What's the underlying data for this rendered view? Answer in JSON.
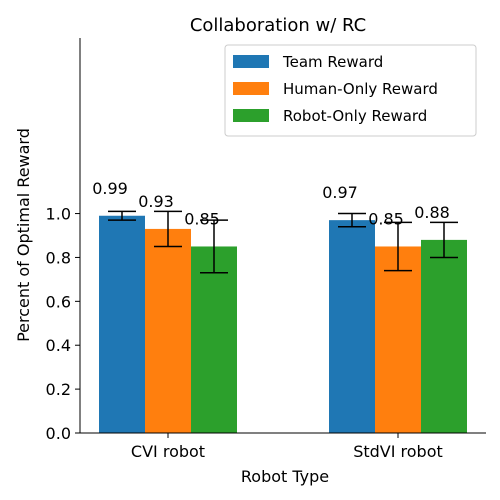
{
  "chart_data": {
    "type": "bar",
    "title": "Collaboration w/ RC",
    "xlabel": "Robot Type",
    "ylabel": "Percent of Optimal Reward",
    "categories": [
      "CVI robot",
      "StdVI robot"
    ],
    "ylim": [
      0,
      1.8
    ],
    "yticks": [
      "0.0",
      "0.2",
      "0.4",
      "0.6",
      "0.8",
      "1.0"
    ],
    "legend_position": "top-right",
    "grid": false,
    "series": [
      {
        "name": "Team Reward",
        "color": "#1f77b4",
        "values": [
          0.99,
          0.97
        ],
        "errors": [
          0.02,
          0.03
        ],
        "labels": [
          "0.99",
          "0.97"
        ]
      },
      {
        "name": "Human-Only Reward",
        "color": "#ff7f0e",
        "values": [
          0.93,
          0.85
        ],
        "errors": [
          0.08,
          0.11
        ],
        "labels": [
          "0.93",
          "0.85"
        ]
      },
      {
        "name": "Robot-Only Reward",
        "color": "#2ca02c",
        "values": [
          0.85,
          0.88
        ],
        "errors": [
          0.12,
          0.08
        ],
        "labels": [
          "0.85",
          "0.88"
        ]
      }
    ]
  }
}
